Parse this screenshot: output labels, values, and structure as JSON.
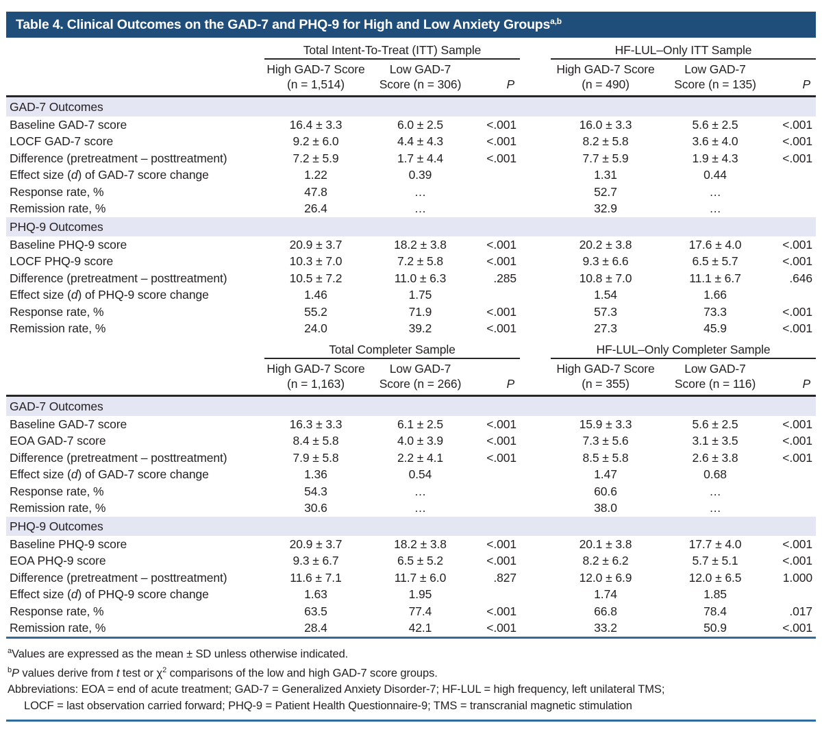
{
  "title": {
    "text": "Table 4. Clinical Outcomes on the GAD-7 and PHQ-9 for High and Low Anxiety Groups",
    "sup": "a,b"
  },
  "colors": {
    "header_bar_bg": "#1E4E79",
    "band_bg": "#E5E6F4",
    "rule_dark": "#262626",
    "rule_blue": "#2F6B9D",
    "text": "#231F20",
    "title_text": "#FFFFFF"
  },
  "panels": [
    {
      "span_headers": [
        "Total Intent-To-Treat (ITT) Sample",
        "HF-LUL–Only ITT Sample"
      ],
      "column_headers": [
        [
          "High GAD-7 Score",
          "(n = 1,514)"
        ],
        [
          "Low GAD-7",
          "Score (n = 306)"
        ],
        [
          "P"
        ],
        [
          "High GAD-7 Score",
          "(n = 490)"
        ],
        [
          "Low GAD-7",
          "Score (n = 135)"
        ],
        [
          "P"
        ]
      ],
      "sections": [
        {
          "header": "GAD-7 Outcomes",
          "rows": [
            {
              "label": "Baseline GAD-7 score",
              "cells": [
                "16.4 ± 3.3",
                "6.0 ± 2.5",
                "<.001",
                "16.0 ± 3.3",
                "5.6 ± 2.5",
                "<.001"
              ]
            },
            {
              "label": "LOCF GAD-7 score",
              "cells": [
                "9.2 ± 6.0",
                "4.4 ± 4.3",
                "<.001",
                "8.2 ± 5.8",
                "3.6 ± 4.0",
                "<.001"
              ]
            },
            {
              "label": "Difference (pretreatment – posttreatment)",
              "cells": [
                "7.2 ± 5.9",
                "1.7 ± 4.4",
                "<.001",
                "7.7 ± 5.9",
                "1.9 ± 4.3",
                "<.001"
              ]
            },
            {
              "label": "Effect size (d) of GAD-7 score change",
              "label_segments": [
                {
                  "t": "Effect size ("
                },
                {
                  "t": "d",
                  "i": true
                },
                {
                  "t": ") of GAD-7 score change"
                }
              ],
              "cells": [
                "1.22",
                "0.39",
                "",
                "1.31",
                "0.44",
                ""
              ]
            },
            {
              "label": "Response rate, %",
              "cells": [
                "47.8",
                "…",
                "",
                "52.7",
                "…",
                ""
              ]
            },
            {
              "label": "Remission rate, %",
              "cells": [
                "26.4",
                "…",
                "",
                "32.9",
                "…",
                ""
              ]
            }
          ]
        },
        {
          "header": "PHQ-9 Outcomes",
          "rows": [
            {
              "label": "Baseline PHQ-9 score",
              "cells": [
                "20.9 ± 3.7",
                "18.2 ± 3.8",
                "<.001",
                "20.2 ± 3.8",
                "17.6 ± 4.0",
                "<.001"
              ]
            },
            {
              "label": "LOCF PHQ-9 score",
              "cells": [
                "10.3 ± 7.0",
                "7.2 ± 5.8",
                "<.001",
                "9.3 ± 6.6",
                "6.5 ± 5.7",
                "<.001"
              ]
            },
            {
              "label": "Difference (pretreatment – posttreatment)",
              "cells": [
                "10.5 ± 7.2",
                "11.0 ± 6.3",
                ".285",
                "10.8 ± 7.0",
                "11.1 ± 6.7",
                ".646"
              ]
            },
            {
              "label": "Effect size (d) of PHQ-9 score change",
              "label_segments": [
                {
                  "t": "Effect size ("
                },
                {
                  "t": "d",
                  "i": true
                },
                {
                  "t": ") of PHQ-9 score change"
                }
              ],
              "cells": [
                "1.46",
                "1.75",
                "",
                "1.54",
                "1.66",
                ""
              ]
            },
            {
              "label": "Response rate, %",
              "cells": [
                "55.2",
                "71.9",
                "<.001",
                "57.3",
                "73.3",
                "<.001"
              ]
            },
            {
              "label": "Remission rate, %",
              "cells": [
                "24.0",
                "39.2",
                "<.001",
                "27.3",
                "45.9",
                "<.001"
              ]
            }
          ]
        }
      ]
    },
    {
      "span_headers": [
        "Total Completer Sample",
        "HF-LUL–Only Completer Sample"
      ],
      "column_headers": [
        [
          "High GAD-7 Score",
          "(n = 1,163)"
        ],
        [
          "Low GAD-7",
          "Score (n = 266)"
        ],
        [
          "P"
        ],
        [
          "High GAD-7 Score",
          "(n = 355)"
        ],
        [
          "Low GAD-7",
          "Score (n = 116)"
        ],
        [
          "P"
        ]
      ],
      "sections": [
        {
          "header": "GAD-7 Outcomes",
          "rows": [
            {
              "label": "Baseline GAD-7 score",
              "cells": [
                "16.3 ± 3.3",
                "6.1 ± 2.5",
                "<.001",
                "15.9 ± 3.3",
                "5.6 ± 2.5",
                "<.001"
              ]
            },
            {
              "label": "EOA GAD-7 score",
              "cells": [
                "8.4 ± 5.8",
                "4.0 ± 3.9",
                "<.001",
                "7.3 ± 5.6",
                "3.1 ± 3.5",
                "<.001"
              ]
            },
            {
              "label": "Difference (pretreatment – posttreatment)",
              "cells": [
                "7.9 ± 5.8",
                "2.2 ± 4.1",
                "<.001",
                "8.5 ± 5.8",
                "2.6 ± 3.8",
                "<.001"
              ]
            },
            {
              "label": "Effect size (d) of GAD-7 score change",
              "label_segments": [
                {
                  "t": "Effect size ("
                },
                {
                  "t": "d",
                  "i": true
                },
                {
                  "t": ") of GAD-7 score change"
                }
              ],
              "cells": [
                "1.36",
                "0.54",
                "",
                "1.47",
                "0.68",
                ""
              ]
            },
            {
              "label": "Response rate, %",
              "cells": [
                "54.3",
                "…",
                "",
                "60.6",
                "…",
                ""
              ]
            },
            {
              "label": "Remission rate, %",
              "cells": [
                "30.6",
                "…",
                "",
                "38.0",
                "…",
                ""
              ]
            }
          ]
        },
        {
          "header": "PHQ-9 Outcomes",
          "rows": [
            {
              "label": "Baseline PHQ-9 score",
              "cells": [
                "20.9 ± 3.7",
                "18.2 ± 3.8",
                "<.001",
                "20.1 ± 3.8",
                "17.7 ± 4.0",
                "<.001"
              ]
            },
            {
              "label": "EOA PHQ-9 score",
              "cells": [
                "9.3 ± 6.7",
                "6.5 ± 5.2",
                "<.001",
                "8.2 ± 6.2",
                "5.7 ± 5.1",
                "<.001"
              ]
            },
            {
              "label": "Difference (pretreatment – posttreatment)",
              "cells": [
                "11.6 ± 7.1",
                "11.7 ± 6.0",
                ".827",
                "12.0 ± 6.9",
                "12.0 ± 6.5",
                "1.000"
              ]
            },
            {
              "label": "Effect size (d) of PHQ-9 score change",
              "label_segments": [
                {
                  "t": "Effect size ("
                },
                {
                  "t": "d",
                  "i": true
                },
                {
                  "t": ") of PHQ-9 score change"
                }
              ],
              "cells": [
                "1.63",
                "1.95",
                "",
                "1.74",
                "1.85",
                ""
              ]
            },
            {
              "label": "Response rate, %",
              "cells": [
                "63.5",
                "77.4",
                "<.001",
                "66.8",
                "78.4",
                ".017"
              ]
            },
            {
              "label": "Remission rate, %",
              "cells": [
                "28.4",
                "42.1",
                "<.001",
                "33.2",
                "50.9",
                "<.001"
              ]
            }
          ]
        }
      ]
    }
  ],
  "footnotes": {
    "lines": [
      {
        "segments": [
          {
            "t": "a",
            "sup": true
          },
          {
            "t": "Values are expressed as the mean ± SD unless otherwise indicated."
          }
        ]
      },
      {
        "segments": [
          {
            "t": "b",
            "sup": true
          },
          {
            "t": "P",
            "i": true
          },
          {
            "t": " values derive from "
          },
          {
            "t": "t",
            "i": true
          },
          {
            "t": " test or χ"
          },
          {
            "t": "2",
            "sup": true
          },
          {
            "t": " comparisons of the low and high GAD-7 score groups."
          }
        ]
      },
      {
        "segments": [
          {
            "t": "Abbreviations: EOA = end of acute treatment; GAD-7 = Generalized Anxiety Disorder-7; HF-LUL = high frequency, left unilateral TMS;"
          }
        ]
      },
      {
        "indent": true,
        "segments": [
          {
            "t": "LOCF = last observation carried forward; PHQ-9 = Patient Health Questionnaire-9; TMS = transcranial magnetic stimulation"
          }
        ]
      }
    ]
  }
}
